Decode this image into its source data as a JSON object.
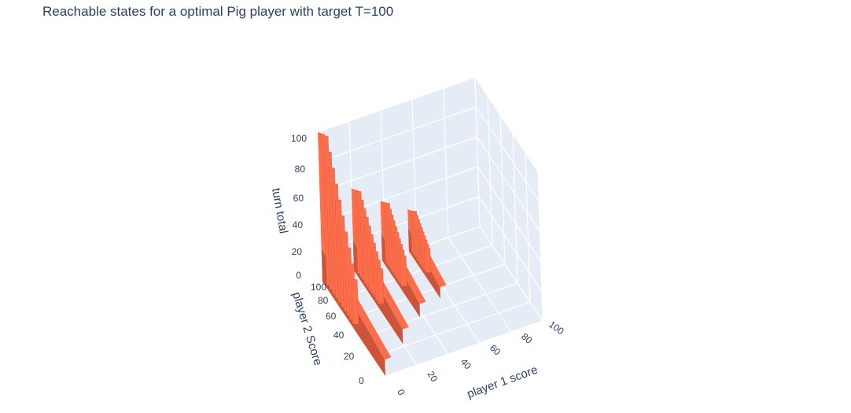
{
  "chart_data": {
    "type": "surface-3d",
    "title": "Reachable states for a optimal Pig player with target T=100",
    "axes": {
      "x": {
        "label": "player 1 score",
        "range": [
          0,
          100
        ],
        "ticks": [
          "0",
          "20",
          "40",
          "60",
          "80",
          "100"
        ]
      },
      "y": {
        "label": "player 2 Score",
        "range": [
          0,
          100
        ],
        "ticks": [
          "0",
          "20",
          "40",
          "60",
          "80",
          "100"
        ]
      },
      "z": {
        "label": "turn total",
        "range": [
          0,
          100
        ],
        "ticks": [
          "0",
          "20",
          "40",
          "60",
          "80",
          "100"
        ]
      }
    },
    "grid": true,
    "colors": {
      "surface_front": "#ff6e4a",
      "surface_side": "#cc5438",
      "pane": "#e5ecf6",
      "grid": "#ffffff"
    },
    "walls": [
      {
        "x": 0,
        "y_range": [
          0,
          100
        ],
        "z_max": 100,
        "z_min": 22
      },
      {
        "x": 20,
        "y_range": [
          22,
          100
        ],
        "z_max": 55,
        "z_min": 20
      },
      {
        "x": 38,
        "y_range": [
          40,
          100
        ],
        "z_max": 40,
        "z_min": 18
      },
      {
        "x": 55,
        "y_range": [
          50,
          100
        ],
        "z_max": 28,
        "z_min": 15
      }
    ]
  }
}
